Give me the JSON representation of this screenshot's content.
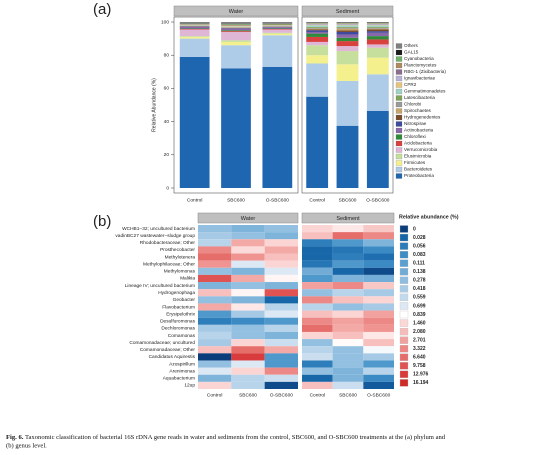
{
  "chart_data": [
    {
      "type": "stacked_bar",
      "panel_label": "(a)",
      "y_label": "Relative Abundance (%)",
      "facets": [
        {
          "name": "Water",
          "categories": [
            "Control",
            "SBC600",
            "O-SBC600"
          ]
        },
        {
          "name": "Sediment",
          "categories": [
            "Control",
            "SBC600",
            "O-SBC600"
          ]
        }
      ],
      "ylim": [
        0,
        100
      ],
      "yticks": [
        0,
        20,
        40,
        60,
        80,
        100
      ],
      "series": [
        {
          "name": "Proteobacteria",
          "color": "#1f66b0",
          "values": [
            79,
            72,
            73,
            55,
            37.5,
            46.5
          ]
        },
        {
          "name": "Bacteroidetes",
          "color": "#aecbe8",
          "values": [
            11,
            14,
            19,
            20,
            27,
            22
          ]
        },
        {
          "name": "Firmicutes",
          "color": "#f4f08e",
          "values": [
            1,
            2,
            1,
            5,
            10,
            10
          ]
        },
        {
          "name": "Elusimicrobia",
          "color": "#c6df9d",
          "values": [
            0.5,
            1,
            0.5,
            6,
            8,
            6
          ]
        },
        {
          "name": "Verrucomicrobia",
          "color": "#dfb6d6",
          "values": [
            4,
            5,
            2,
            2,
            3,
            2
          ]
        },
        {
          "name": "Acidobacteria",
          "color": "#d8413e",
          "values": [
            0.3,
            0.5,
            0.3,
            3,
            3,
            3
          ]
        },
        {
          "name": "Chloroflexi",
          "color": "#2f8a3a",
          "values": [
            0.3,
            0.5,
            0.3,
            2,
            2,
            2
          ]
        },
        {
          "name": "Actinobacteria",
          "color": "#8a67aa",
          "values": [
            1,
            1,
            0.8,
            1,
            2,
            2
          ]
        },
        {
          "name": "Nitrospirae",
          "color": "#3f4a9c",
          "values": [
            0.2,
            0.3,
            0.2,
            1,
            1.5,
            1
          ]
        },
        {
          "name": "Hydrogenedentes",
          "color": "#7a4b2a",
          "values": [
            0.2,
            0.2,
            0.1,
            0.5,
            1,
            1
          ]
        },
        {
          "name": "Spirochaetes",
          "color": "#c9a56c",
          "values": [
            0.2,
            0.3,
            0.2,
            0.5,
            1,
            0.5
          ]
        },
        {
          "name": "Chlorobi",
          "color": "#9a9a9a",
          "values": [
            0.1,
            0.2,
            0.1,
            0.5,
            0.5,
            0.5
          ]
        },
        {
          "name": "Latescibacteria",
          "color": "#7fa35a",
          "values": [
            0.1,
            0.1,
            0.1,
            0.5,
            0.5,
            0.5
          ]
        },
        {
          "name": "Gemmatimonadetes",
          "color": "#9fd3c7",
          "values": [
            0.2,
            0.3,
            0.2,
            1,
            1,
            1
          ]
        },
        {
          "name": "CPR2",
          "color": "#e8c37a",
          "values": [
            0.1,
            0.2,
            0.1,
            0.3,
            0.3,
            0.3
          ]
        },
        {
          "name": "Ignavibacteriae",
          "color": "#b9b3d9",
          "values": [
            0.1,
            0.1,
            0.1,
            0.3,
            0.3,
            0.3
          ]
        },
        {
          "name": "RBG-1 (Zixibacteria)",
          "color": "#8c6d8f",
          "values": [
            0.1,
            0.1,
            0.1,
            0.3,
            0.3,
            0.3
          ]
        },
        {
          "name": "Planctomycetes",
          "color": "#b08a5e",
          "values": [
            0.3,
            0.5,
            0.4,
            0.3,
            0.3,
            0.3
          ]
        },
        {
          "name": "Cyanobacteria",
          "color": "#6fb06a",
          "values": [
            0.3,
            0.4,
            0.3,
            0.2,
            0.2,
            0.2
          ]
        },
        {
          "name": "GAL15",
          "color": "#1a1a1a",
          "values": [
            0.1,
            0.1,
            0.1,
            0.2,
            0.2,
            0.2
          ]
        },
        {
          "name": "Others",
          "color": "#7f7f7f",
          "values": [
            0.9,
            1.2,
            1.1,
            0.4,
            0.4,
            0.4
          ]
        }
      ]
    },
    {
      "type": "heatmap",
      "panel_label": "(b)",
      "facets": [
        {
          "name": "Water",
          "categories": [
            "Control",
            "SBC600",
            "O-SBC600"
          ]
        },
        {
          "name": "Sediment",
          "categories": [
            "Control",
            "SBC600",
            "O-SBC600"
          ]
        }
      ],
      "rows": [
        "WCHB1−32; uncultured bacterium",
        "vadinBC27 wastewater−sludge group",
        "Rhodobacteraceae; Other",
        "Prosthecobacter",
        "Methylotenera",
        "Methylophilaceae; Other",
        "Methylomonas",
        "Malikia",
        "Lineage IV; uncultured bacterium",
        "Hydrogenophaga",
        "Geobacter",
        "Flavobacterium",
        "Erysipelothrix",
        "Desulfuromonas",
        "Dechloromonas",
        "Comamonas",
        "Comamonadaceae; uncultured",
        "Comamonadaceae; Other",
        "Candidatus Aquirestis",
        "Azospirillum",
        "Arenimonas",
        "Aquabacterium",
        "12up"
      ],
      "values": [
        [
          0.3,
          0.2,
          0.3,
          1.5,
          1.2,
          1.8
        ],
        [
          0.4,
          0.3,
          0.2,
          2.0,
          6.6,
          3.3
        ],
        [
          0.5,
          2.5,
          1.5,
          0.06,
          0.1,
          0.2
        ],
        [
          3.3,
          1.4,
          2.5,
          0.03,
          0.05,
          0.08
        ],
        [
          6.6,
          3.0,
          2.0,
          0.03,
          0.06,
          0.04
        ],
        [
          3.0,
          0.7,
          1.5,
          0.05,
          0.1,
          0.08
        ],
        [
          0.3,
          0.2,
          0.7,
          0.14,
          0.03,
          0.01
        ],
        [
          9.7,
          2.5,
          1.0,
          0.1,
          0.2,
          0.15
        ],
        [
          0.2,
          0.3,
          0.2,
          2.7,
          3.3,
          1.8
        ],
        [
          2.0,
          1.0,
          9.7,
          0.3,
          0.5,
          0.4
        ],
        [
          0.3,
          0.2,
          0.03,
          3.3,
          2.0,
          1.5
        ],
        [
          2.5,
          1.2,
          0.5,
          0.5,
          0.3,
          0.4
        ],
        [
          0.1,
          0.4,
          0.7,
          2.0,
          1.5,
          2.7
        ],
        [
          0.06,
          0.08,
          0.1,
          3.3,
          2.7,
          3.3
        ],
        [
          0.4,
          0.3,
          0.5,
          6.6,
          2.5,
          3.0
        ],
        [
          0.5,
          0.3,
          0.2,
          1.5,
          2.0,
          1.2
        ],
        [
          0.4,
          1.5,
          0.6,
          0.3,
          0.9,
          2.0
        ],
        [
          2.0,
          6.6,
          2.5,
          0.5,
          0.3,
          0.8
        ],
        [
          0,
          12.9,
          0.1,
          0.6,
          0.3,
          0.4
        ],
        [
          0.3,
          0.7,
          0.1,
          0.06,
          0.3,
          0.1
        ],
        [
          0.7,
          1.5,
          3.3,
          0.3,
          0.2,
          0.5
        ],
        [
          0.2,
          0.5,
          0.6,
          0.03,
          0.2,
          0.08
        ],
        [
          1.5,
          0.5,
          0.01,
          2.0,
          0.6,
          0.02
        ]
      ],
      "colorbar": {
        "title": "Relative abundance (%)",
        "ticks": [
          0,
          0.028,
          0.056,
          0.083,
          0.111,
          0.138,
          0.278,
          0.418,
          0.559,
          0.699,
          0.839,
          {
            "value": 1.46,
            "label": "1.460"
          },
          {
            "value": 2.08,
            "label": "2.080"
          },
          2.701,
          3.322,
          {
            "value": 6.64,
            "label": "6.640"
          },
          9.758,
          12.976,
          16.194
        ],
        "colors": [
          "#0b3d7a",
          "#1565a8",
          "#2b7bba",
          "#3d8cc4",
          "#5a9fcf",
          "#72acd6",
          "#8fbde0",
          "#a9cce6",
          "#c3daee",
          "#dce9f5",
          "#ffffff",
          "#fbd7d5",
          "#f6bcb9",
          "#f1a19e",
          "#ec8784",
          "#e56d6a",
          "#df5452",
          "#d93b3b",
          "#cf2a2a"
        ]
      }
    }
  ],
  "caption": {
    "label": "Fig. 6.",
    "lines": [
      "Taxonomic classification of bacterial 16S rDNA gene reads in water and sediments from the control, SBC600, and O-SBC600 treatments at the (a) phylum and",
      "(b) genus level."
    ]
  }
}
